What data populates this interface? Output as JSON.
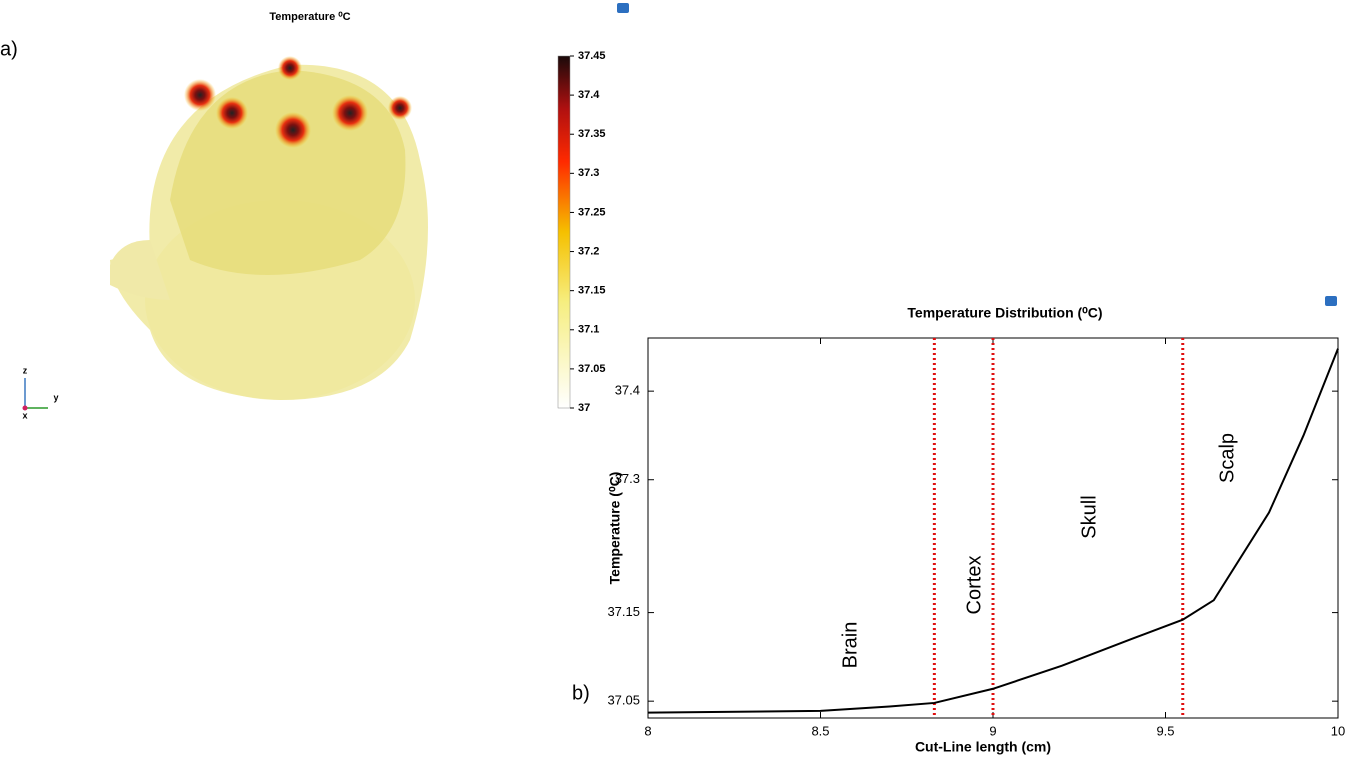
{
  "chart_data": [
    {
      "type": "surface",
      "panel_label": "a)",
      "title": "Temperature ⁰C",
      "axes_triad": [
        "z",
        "y",
        "x"
      ],
      "colorbar": {
        "lim": [
          37,
          37.45
        ],
        "ticks": [
          37,
          37.05,
          37.1,
          37.15,
          37.2,
          37.25,
          37.3,
          37.35,
          37.4,
          37.45
        ]
      }
    },
    {
      "type": "line",
      "panel_label": "b)",
      "title": "Temperature Distribution (⁰C)",
      "xlabel": "Cut-Line length (cm)",
      "ylabel": "Temperature (⁰C)",
      "x": [
        8,
        8.5,
        8.7,
        8.83,
        9.0,
        9.2,
        9.4,
        9.55,
        9.64,
        9.8,
        9.9,
        10
      ],
      "values": [
        37.037,
        37.039,
        37.044,
        37.048,
        37.064,
        37.09,
        37.12,
        37.142,
        37.164,
        37.263,
        37.35,
        37.448
      ],
      "color": "#000000",
      "boundaries": [
        8.83,
        9.0,
        9.55
      ],
      "boundary_color": "#e01010",
      "annotations": [
        "Brain",
        "Cortex",
        "Skull",
        "Scalp"
      ],
      "xlim": [
        8,
        10
      ],
      "xticks": [
        8,
        8.5,
        9,
        9.5,
        10
      ],
      "ylim": [
        37.031,
        37.46
      ],
      "yticks": [
        37.05,
        37.15,
        37.3,
        37.4
      ]
    }
  ]
}
